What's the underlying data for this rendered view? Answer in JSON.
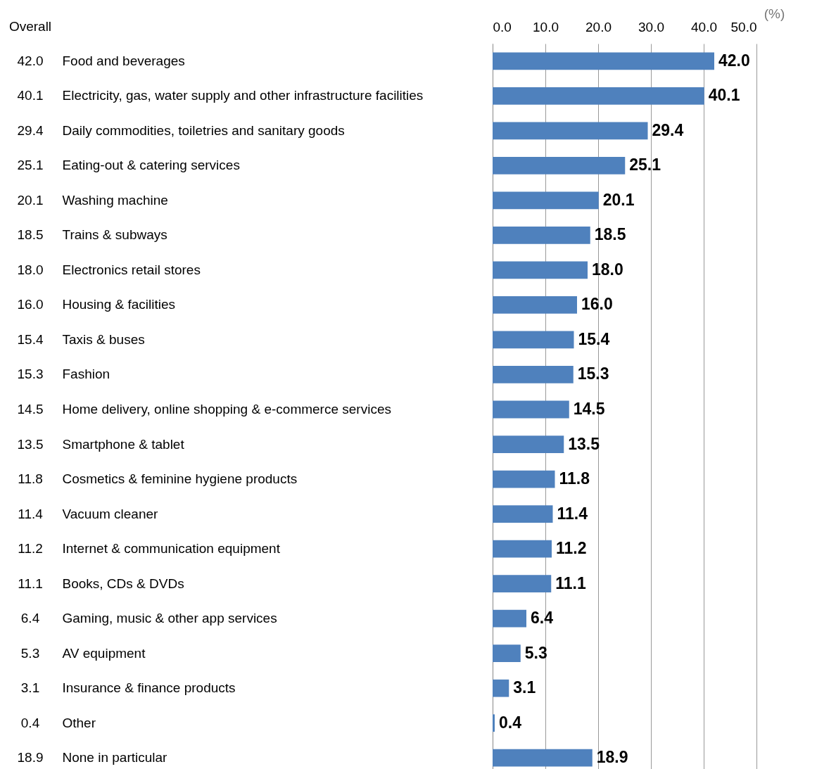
{
  "chart_data": {
    "type": "bar",
    "orientation": "horizontal",
    "ylabel": "Overall",
    "xlabel": "(%)",
    "categories": [
      "Food and beverages",
      "Electricity, gas, water supply and other infrastructure facilities",
      "Daily commodities, toiletries and sanitary goods",
      "Eating-out & catering services",
      "Washing machine",
      "Trains & subways",
      "Electronics retail stores",
      "Housing & facilities",
      "Taxis & buses",
      "Fashion",
      "Home delivery, online shopping & e-commerce services",
      "Smartphone & tablet",
      "Cosmetics & feminine hygiene products",
      "Vacuum cleaner",
      "Internet & communication equipment",
      "Books, CDs & DVDs",
      "Gaming, music & other app services",
      "AV equipment",
      "Insurance & finance products",
      "Other",
      "None in particular"
    ],
    "values": [
      42.0,
      40.1,
      29.4,
      25.1,
      20.1,
      18.5,
      18.0,
      16.0,
      15.4,
      15.3,
      14.5,
      13.5,
      11.8,
      11.4,
      11.2,
      11.1,
      6.4,
      5.3,
      3.1,
      0.4,
      18.9
    ],
    "color": "#4f81bd",
    "xlim": [
      0,
      50
    ],
    "xticks": [
      {
        "value": 0,
        "label": "0.0"
      },
      {
        "value": 10,
        "label": "10.0"
      },
      {
        "value": 20,
        "label": "20.0"
      },
      {
        "value": 30,
        "label": "30.0"
      },
      {
        "value": 40,
        "label": "40.0"
      },
      {
        "value": 50,
        "label": "50.0"
      }
    ],
    "value_labels": [
      "42.0",
      "40.1",
      "29.4",
      "25.1",
      "20.1",
      "18.5",
      "18.0",
      "16.0",
      "15.4",
      "15.3",
      "14.5",
      "13.5",
      "11.8",
      "11.4",
      "11.2",
      "11.1",
      "6.4",
      "5.3",
      "3.1",
      "0.4",
      "18.9"
    ],
    "grid": "x"
  }
}
